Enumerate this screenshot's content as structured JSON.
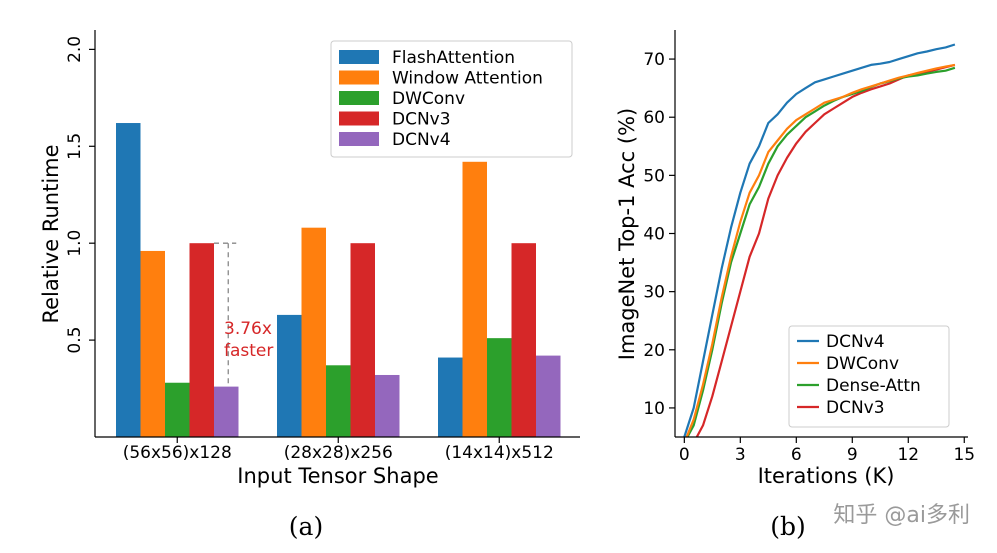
{
  "chart_data": [
    {
      "type": "bar",
      "xlabel": "Input Tensor Shape",
      "ylabel": "Relative Runtime",
      "ylim": [
        0,
        2.1
      ],
      "yticks": [
        "0.5",
        "1.0",
        "1.5",
        "2.0"
      ],
      "categories": [
        "(56x56)x128",
        "(28x28)x256",
        "(14x14)x512"
      ],
      "series": [
        {
          "name": "FlashAttention",
          "color": "#1f77b4",
          "values": [
            1.62,
            0.63,
            0.41
          ]
        },
        {
          "name": "Window Attention",
          "color": "#ff7f0e",
          "values": [
            0.96,
            1.08,
            1.42
          ]
        },
        {
          "name": "DWConv",
          "color": "#2ca02c",
          "values": [
            0.28,
            0.37,
            0.51
          ]
        },
        {
          "name": "DCNv3",
          "color": "#d62728",
          "values": [
            1.0,
            1.0,
            1.0
          ]
        },
        {
          "name": "DCNv4",
          "color": "#9467bd",
          "values": [
            0.26,
            0.32,
            0.42
          ]
        }
      ],
      "annotation": {
        "line1": "3.76x",
        "line2": "faster"
      },
      "legend": "top-right",
      "caption": "(a)"
    },
    {
      "type": "line",
      "xlabel": "Iterations (K)",
      "ylabel": "ImageNet Top-1 Acc (%)",
      "xlim": [
        -0.5,
        15.2
      ],
      "ylim": [
        5,
        75
      ],
      "xticks": [
        "0",
        "3",
        "6",
        "9",
        "12",
        "15"
      ],
      "yticks": [
        "10",
        "20",
        "30",
        "40",
        "50",
        "60",
        "70"
      ],
      "x": [
        0,
        0.5,
        1,
        1.5,
        2,
        2.5,
        3,
        3.5,
        4,
        4.5,
        5,
        5.5,
        6,
        6.5,
        7,
        7.5,
        8,
        8.5,
        9,
        9.5,
        10,
        10.5,
        11,
        11.5,
        12,
        12.5,
        13,
        13.5,
        14,
        14.5
      ],
      "series": [
        {
          "name": "DCNv4",
          "color": "#1f77b4",
          "values": [
            5,
            10,
            18,
            26,
            34,
            41,
            47,
            52,
            55,
            59,
            60.5,
            62.5,
            64,
            65,
            66,
            66.5,
            67,
            67.5,
            68,
            68.5,
            69,
            69.2,
            69.5,
            70,
            70.5,
            71,
            71.3,
            71.7,
            72,
            72.5
          ]
        },
        {
          "name": "DWConv",
          "color": "#ff7f0e",
          "values": [
            4,
            8,
            14,
            21,
            29,
            36,
            42,
            47,
            50,
            54,
            56,
            58,
            59.5,
            60.5,
            61.5,
            62.5,
            63,
            63.5,
            64.2,
            64.8,
            65.3,
            65.8,
            66.3,
            66.8,
            67.2,
            67.6,
            68,
            68.4,
            68.7,
            69
          ]
        },
        {
          "name": "Dense-Attn",
          "color": "#2ca02c",
          "values": [
            4,
            7,
            13,
            20,
            28,
            35,
            40,
            45,
            48,
            52,
            55,
            57,
            58.5,
            60,
            61,
            62,
            62.8,
            63.5,
            64,
            64.5,
            65.2,
            65.8,
            66.2,
            66.7,
            67,
            67.2,
            67.5,
            67.8,
            68,
            68.5
          ]
        },
        {
          "name": "DCNv3",
          "color": "#d62728",
          "values": [
            3,
            4,
            7,
            12,
            18,
            24,
            30,
            36,
            40,
            46,
            50,
            53,
            55.5,
            57.5,
            59,
            60.5,
            61.5,
            62.5,
            63.5,
            64.2,
            64.8,
            65.3,
            65.8,
            66.5,
            67.2,
            67.5,
            67.8,
            68.2,
            68.6,
            69
          ]
        }
      ],
      "legend": "bottom-right",
      "caption": "(b)"
    }
  ],
  "watermark": "知乎 @ai多利"
}
